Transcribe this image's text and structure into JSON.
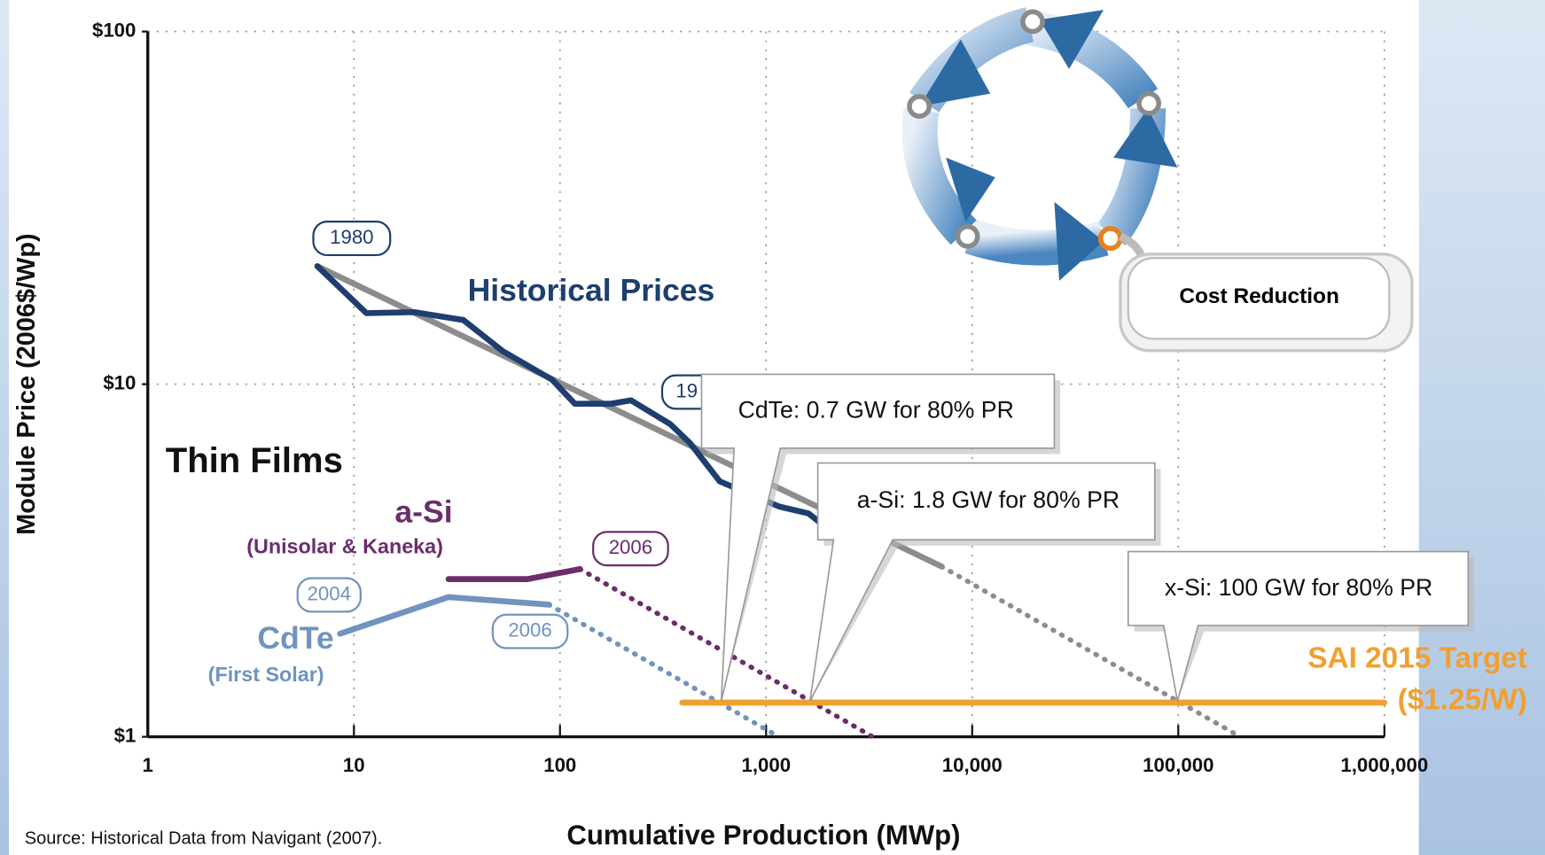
{
  "chart_data": {
    "type": "line",
    "x_label": "Cumulative Production (MWp)",
    "y_label": "Module Price (2006$/Wp)",
    "xscale": "log",
    "yscale": "log",
    "xlim": [
      1,
      1000000
    ],
    "ylim": [
      1,
      100
    ],
    "xticks": [
      1,
      10,
      100,
      {
        "value": 1000,
        "label": "1,000"
      },
      {
        "value": 10000,
        "label": "10,000"
      },
      {
        "value": 100000,
        "label": "100,000"
      },
      {
        "value": 1000000,
        "label": "1,000,000"
      }
    ],
    "yticks": [
      {
        "value": 1,
        "label": "$1"
      },
      {
        "value": 10,
        "label": "$10"
      },
      {
        "value": 100,
        "label": "$100"
      }
    ],
    "grid": true,
    "series": [
      {
        "color": "#8c8c8c",
        "x": [
          6.65,
          7110
        ],
        "values": [
          21.6,
          3.04
        ]
      },
      {
        "color": "#8c8c8c",
        "style": "dotted",
        "x": [
          7110,
          200000
        ],
        "values": [
          3.04,
          1
        ]
      },
      {
        "name": "Historical Prices",
        "color": "#1d3e6e",
        "x": [
          6.65,
          11.5,
          19.6,
          34,
          52.8,
          91.5,
          118,
          177,
          221,
          343,
          428,
          596,
          1153,
          1607,
          2495
        ],
        "values": [
          21.6,
          15.9,
          16,
          15.2,
          12.4,
          10.3,
          8.8,
          8.8,
          9.0,
          7.7,
          6.8,
          5.3,
          4.5,
          4.3,
          3.5
        ]
      },
      {
        "name": "a-Si",
        "color": "#6b2d6b",
        "x": [
          28.8,
          69.5,
          125
        ],
        "values": [
          2.8,
          2.8,
          2.99
        ]
      },
      {
        "color": "#6b2d6b",
        "style": "dotted",
        "x": [
          125,
          3290
        ],
        "values": [
          2.99,
          1
        ]
      },
      {
        "name": "CdTe",
        "color": "#7093bf",
        "x": [
          8.57,
          28.8,
          88.5
        ],
        "values": [
          1.96,
          2.49,
          2.37
        ]
      },
      {
        "color": "#7093bf",
        "style": "dotted",
        "x": [
          88.5,
          1153
        ],
        "values": [
          2.37,
          1
        ]
      },
      {
        "name": "SAI 2015 Target",
        "color": "#f0a030",
        "x": [
          392,
          1000000
        ],
        "values": [
          1.25,
          1.25
        ]
      }
    ],
    "annotations": [
      "1980",
      "19",
      "2006",
      "2004",
      "2006",
      "Thin Films",
      "(Unisolar & Kaneka)",
      "(First Solar)",
      "CdTe: 0.7 GW for 80% PR",
      "a-Si: 1.8 GW for 80% PR",
      "x-Si: 100 GW for 80% PR",
      "($1.25/W)",
      "Cost Reduction"
    ],
    "source": "Source:  Historical Data from Navigant (2007)."
  }
}
